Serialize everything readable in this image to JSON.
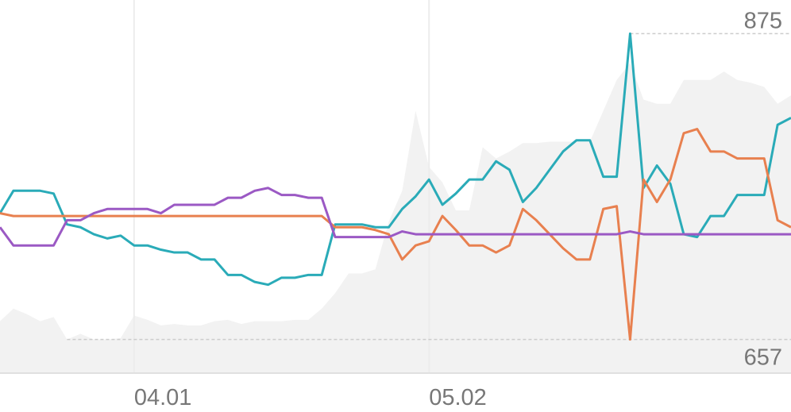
{
  "chart_data": {
    "type": "line",
    "categories": [
      null,
      null,
      null,
      null,
      null,
      null,
      null,
      null,
      null,
      null,
      "04.01",
      null,
      null,
      null,
      null,
      null,
      null,
      null,
      null,
      null,
      null,
      null,
      null,
      null,
      null,
      null,
      null,
      null,
      null,
      null,
      null,
      null,
      "05.02",
      null,
      null,
      null,
      null,
      null,
      null,
      null,
      null,
      null,
      null,
      null,
      null,
      null,
      null,
      null,
      null,
      null,
      null,
      null,
      null,
      null,
      null,
      null,
      null,
      null,
      null,
      null
    ],
    "ylim": [
      633,
      899
    ],
    "yticks": [
      657,
      875
    ],
    "series": [
      {
        "color": "#f2f2f2",
        "area": true,
        "values": [
          670,
          679,
          675,
          670,
          673,
          657,
          661,
          657,
          657,
          658,
          674,
          671,
          667,
          668,
          667,
          667,
          670,
          671,
          668,
          670,
          670,
          670,
          671,
          671,
          679,
          690,
          704,
          704,
          707,
          741,
          763,
          820,
          780,
          769,
          749,
          749,
          794,
          786,
          791,
          797,
          797,
          798,
          798,
          798,
          798,
          820,
          842,
          854,
          828,
          825,
          825,
          842,
          842,
          842,
          848,
          842,
          840,
          837,
          825,
          831
        ]
      },
      {
        "color": "#2aabb8",
        "values": [
          747,
          763,
          763,
          763,
          761,
          739,
          737,
          732,
          729,
          731,
          724,
          724,
          721,
          719,
          719,
          714,
          714,
          703,
          703,
          698,
          696,
          701,
          701,
          703,
          703,
          739,
          739,
          739,
          737,
          737,
          750,
          759,
          771,
          753,
          761,
          771,
          771,
          784,
          778,
          755,
          765,
          778,
          791,
          799,
          799,
          773,
          773,
          875,
          765,
          781,
          768,
          732,
          730,
          745,
          745,
          760,
          760,
          760,
          810,
          815
        ]
      },
      {
        "color": "#e8804f",
        "values": [
          747,
          745,
          745,
          745,
          745,
          745,
          745,
          745,
          745,
          745,
          745,
          745,
          745,
          745,
          745,
          745,
          745,
          745,
          745,
          745,
          745,
          745,
          745,
          745,
          745,
          737,
          737,
          737,
          735,
          732,
          714,
          724,
          727,
          745,
          735,
          724,
          724,
          719,
          724,
          750,
          742,
          732,
          722,
          714,
          714,
          750,
          752,
          657,
          771,
          755,
          771,
          804,
          807,
          791,
          791,
          786,
          786,
          786,
          742,
          737
        ]
      },
      {
        "color": "#9b59c4",
        "values": [
          737,
          724,
          724,
          724,
          724,
          742,
          742,
          747,
          750,
          750,
          750,
          750,
          747,
          753,
          753,
          753,
          753,
          758,
          758,
          763,
          765,
          760,
          760,
          758,
          758,
          730,
          730,
          730,
          730,
          730,
          734,
          732,
          732,
          732,
          732,
          732,
          732,
          732,
          732,
          732,
          732,
          732,
          732,
          732,
          732,
          732,
          732,
          734,
          732,
          732,
          732,
          732,
          732,
          732,
          732,
          732,
          732,
          732,
          732,
          732
        ]
      }
    ]
  }
}
